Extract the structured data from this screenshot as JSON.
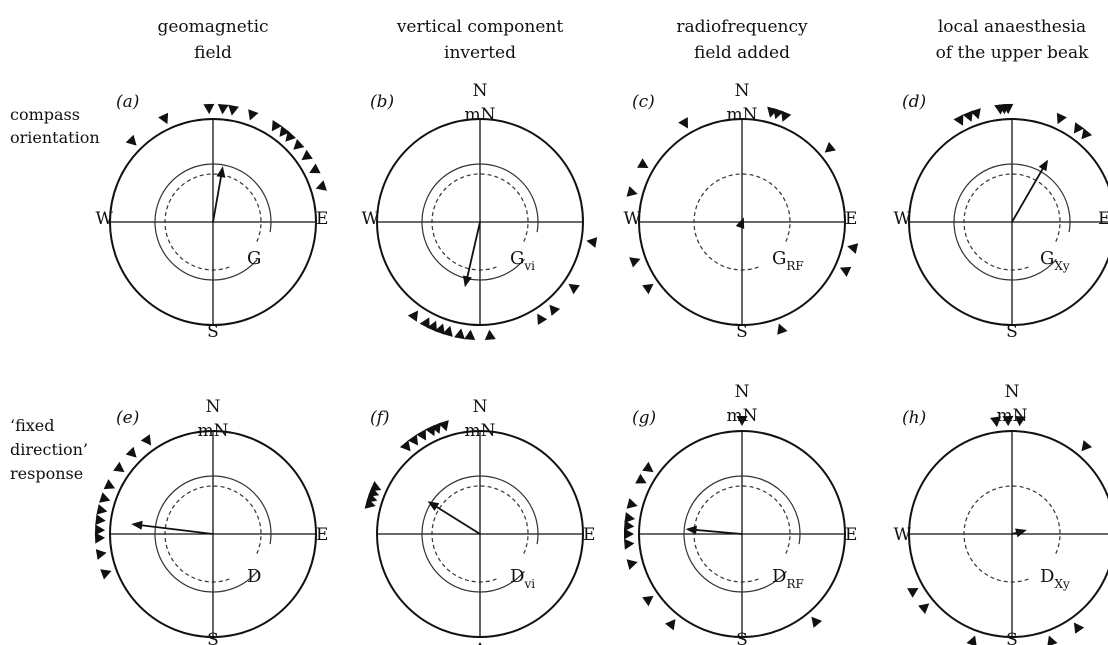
{
  "headers": [
    [
      "geomagnetic",
      "field"
    ],
    [
      "vertical component",
      "inverted"
    ],
    [
      "radiofrequency",
      "field added"
    ],
    [
      "local anaesthesia",
      "of the upper beak"
    ]
  ],
  "row_labels": [
    [
      "compass",
      "orientation"
    ],
    [
      "‘fixed",
      "direction’",
      "response"
    ]
  ],
  "panels": [
    {
      "letter": "(a)",
      "N": "",
      "mN": "",
      "W": "W",
      "E": "E",
      "S": "S",
      "label_main": "G",
      "label_sub": "",
      "mean_arrow": {
        "bearing_deg": 10,
        "length_r": 0.55
      },
      "birds_deg": [
        10,
        20,
        33,
        38,
        42,
        48,
        55,
        63,
        72,
        315,
        335,
        358,
        5
      ]
    },
    {
      "letter": "(b)",
      "N": "N",
      "mN": "mN",
      "W": "W",
      "E": "",
      "S": "",
      "label_main": "G",
      "label_sub": "vi",
      "mean_arrow": {
        "bearing_deg": 193,
        "length_r": 0.65
      },
      "birds_deg": [
        100,
        140,
        175,
        185,
        190,
        196,
        200,
        204,
        208,
        215,
        148,
        125
      ]
    },
    {
      "letter": "(c)",
      "N": "N",
      "mN": "mN",
      "W": "W",
      "E": "E",
      "S": "S",
      "label_main": "G",
      "label_sub": "RF",
      "mean_arrow": {
        "bearing_deg": 20,
        "length_r": 0.05
      },
      "birds_deg": [
        15,
        18,
        22,
        50,
        103,
        115,
        160,
        235,
        250,
        285,
        300,
        330
      ]
    },
    {
      "letter": "(d)",
      "N": "",
      "mN": "",
      "W": "W",
      "E": "E",
      "S": "S",
      "label_main": "G",
      "label_sub": "Xy",
      "mean_arrow": {
        "bearing_deg": 30,
        "length_r": 0.7
      },
      "birds_deg": [
        333,
        338,
        342,
        354,
        356,
        358,
        25,
        35,
        40,
        72,
        75,
        78,
        80
      ]
    },
    {
      "letter": "(e)",
      "N": "N",
      "mN": "mN",
      "W": "",
      "E": "E",
      "S": "S",
      "label_main": "D",
      "label_sub": "",
      "mean_arrow": {
        "bearing_deg": 277,
        "length_r": 0.8
      },
      "birds_deg": [
        260,
        268,
        272,
        277,
        282,
        288,
        295,
        305,
        315,
        325,
        250
      ]
    },
    {
      "letter": "(f)",
      "N": "N",
      "mN": "mN",
      "W": "",
      "E": "E",
      "S": "",
      "label_main": "D",
      "label_sub": "vi",
      "mean_arrow": {
        "bearing_deg": 302,
        "length_r": 0.6
      },
      "birds_deg": [
        285,
        288,
        291,
        294,
        320,
        325,
        330,
        335,
        338,
        342,
        180
      ]
    },
    {
      "letter": "(g)",
      "N": "N",
      "mN": "mN",
      "W": "",
      "E": "E",
      "S": "S",
      "label_main": "D",
      "label_sub": "RF",
      "mean_arrow": {
        "bearing_deg": 275,
        "length_r": 0.55
      },
      "birds_deg": [
        0,
        140,
        235,
        255,
        265,
        270,
        274,
        278,
        285,
        298,
        305,
        218
      ]
    },
    {
      "letter": "(h)",
      "N": "N",
      "mN": "mN",
      "W": "W",
      "E": "",
      "S": "S",
      "label_main": "D",
      "label_sub": "Xy",
      "mean_arrow": {
        "bearing_deg": 75,
        "length_r": 0.15
      },
      "birds_deg": [
        352,
        358,
        4,
        40,
        105,
        110,
        145,
        160,
        200,
        230,
        240
      ]
    }
  ]
}
